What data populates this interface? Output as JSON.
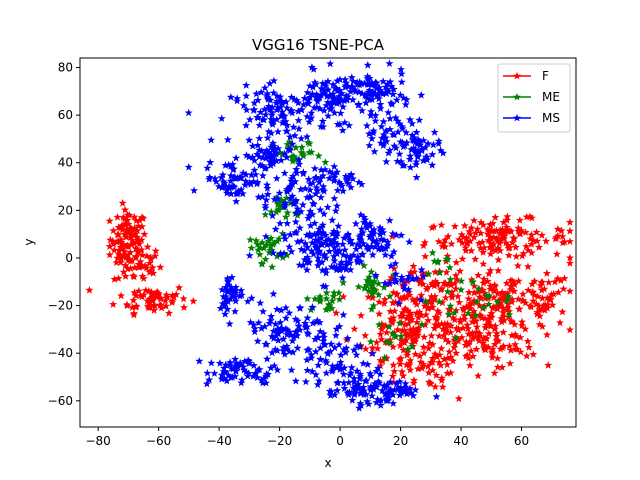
{
  "chart_data": {
    "type": "scatter",
    "title": "VGG16 TSNE-PCA",
    "xlabel": "x",
    "ylabel": "y",
    "xlim": [
      -86,
      78
    ],
    "ylim": [
      -71,
      84
    ],
    "xticks": [
      -80,
      -60,
      -40,
      -20,
      0,
      20,
      40,
      60
    ],
    "yticks": [
      -60,
      -40,
      -20,
      0,
      20,
      40,
      60,
      80
    ],
    "xtick_labels": [
      "−80",
      "−60",
      "−40",
      "−20",
      "0",
      "20",
      "40",
      "60"
    ],
    "ytick_labels": [
      "−60",
      "−40",
      "−20",
      "0",
      "20",
      "40",
      "60",
      "80"
    ],
    "grid": false,
    "legend_position": "top-right",
    "marker": "star",
    "series": [
      {
        "name": "F",
        "color": "#ff0000",
        "clusters": [
          {
            "cx": -70,
            "cy": 8,
            "sx": 3,
            "sy": 6,
            "n": 90
          },
          {
            "cx": -67,
            "cy": -3,
            "sx": 4,
            "sy": 4,
            "n": 40
          },
          {
            "cx": -62,
            "cy": -17,
            "sx": 6,
            "sy": 3,
            "n": 60
          },
          {
            "cx": 52,
            "cy": 8,
            "sx": 12,
            "sy": 4,
            "n": 140
          },
          {
            "cx": 55,
            "cy": -18,
            "sx": 12,
            "sy": 6,
            "n": 180
          },
          {
            "cx": 45,
            "cy": -35,
            "sx": 10,
            "sy": 6,
            "n": 120
          },
          {
            "cx": 22,
            "cy": -25,
            "sx": 8,
            "sy": 8,
            "n": 140
          },
          {
            "cx": 25,
            "cy": -45,
            "sx": 6,
            "sy": 5,
            "n": 60
          },
          {
            "cx": 30,
            "cy": -10,
            "sx": 6,
            "sy": 4,
            "n": 40
          }
        ]
      },
      {
        "name": "ME",
        "color": "#008000",
        "clusters": [
          {
            "cx": -14,
            "cy": 43,
            "sx": 4,
            "sy": 3,
            "n": 25
          },
          {
            "cx": -18,
            "cy": 22,
            "sx": 3,
            "sy": 3,
            "n": 25
          },
          {
            "cx": -24,
            "cy": 4,
            "sx": 3,
            "sy": 3,
            "n": 30
          },
          {
            "cx": -5,
            "cy": -18,
            "sx": 3,
            "sy": 2,
            "n": 20
          },
          {
            "cx": 10,
            "cy": -12,
            "sx": 3,
            "sy": 4,
            "n": 30
          },
          {
            "cx": 42,
            "cy": -18,
            "sx": 8,
            "sy": 5,
            "n": 25
          },
          {
            "cx": 34,
            "cy": -1,
            "sx": 2,
            "sy": 2,
            "n": 8
          },
          {
            "cx": 20,
            "cy": -35,
            "sx": 6,
            "sy": 5,
            "n": 15
          }
        ]
      },
      {
        "name": "MS",
        "color": "#0000ff",
        "clusters": [
          {
            "cx": -20,
            "cy": 60,
            "sx": 8,
            "sy": 6,
            "n": 110
          },
          {
            "cx": 0,
            "cy": 68,
            "sx": 8,
            "sy": 5,
            "n": 120
          },
          {
            "cx": 12,
            "cy": 70,
            "sx": 5,
            "sy": 4,
            "n": 50
          },
          {
            "cx": 25,
            "cy": 45,
            "sx": 4,
            "sy": 5,
            "n": 60
          },
          {
            "cx": 15,
            "cy": 53,
            "sx": 4,
            "sy": 4,
            "n": 30
          },
          {
            "cx": -35,
            "cy": 33,
            "sx": 5,
            "sy": 4,
            "n": 60
          },
          {
            "cx": -25,
            "cy": 42,
            "sx": 4,
            "sy": 3,
            "n": 40
          },
          {
            "cx": -15,
            "cy": 27,
            "sx": 5,
            "sy": 5,
            "n": 60
          },
          {
            "cx": -10,
            "cy": 10,
            "sx": 6,
            "sy": 6,
            "n": 70
          },
          {
            "cx": -3,
            "cy": 0,
            "sx": 5,
            "sy": 5,
            "n": 60
          },
          {
            "cx": 10,
            "cy": 8,
            "sx": 6,
            "sy": 6,
            "n": 80
          },
          {
            "cx": 0,
            "cy": 33,
            "sx": 4,
            "sy": 3,
            "n": 30
          },
          {
            "cx": -36,
            "cy": -15,
            "sx": 2,
            "sy": 4,
            "n": 40
          },
          {
            "cx": -18,
            "cy": -30,
            "sx": 8,
            "sy": 6,
            "n": 90
          },
          {
            "cx": -5,
            "cy": -40,
            "sx": 6,
            "sy": 4,
            "n": 40
          },
          {
            "cx": -32,
            "cy": -48,
            "sx": 6,
            "sy": 3,
            "n": 60
          },
          {
            "cx": 5,
            "cy": -53,
            "sx": 8,
            "sy": 4,
            "n": 80
          },
          {
            "cx": 15,
            "cy": -57,
            "sx": 6,
            "sy": 3,
            "n": 40
          },
          {
            "cx": 20,
            "cy": -10,
            "sx": 3,
            "sy": 3,
            "n": 20
          }
        ]
      }
    ]
  }
}
